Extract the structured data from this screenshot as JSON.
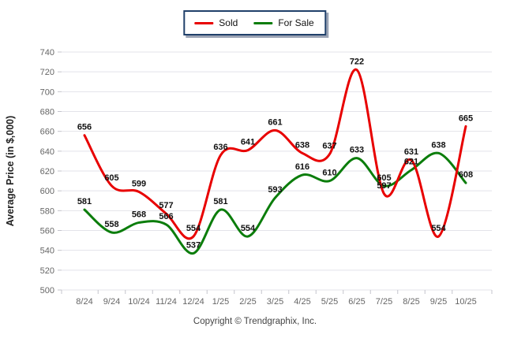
{
  "legend": {
    "items": [
      {
        "label": "Sold",
        "color": "#e80000"
      },
      {
        "label": "For Sale",
        "color": "#0b7d0b"
      }
    ]
  },
  "chart_data": {
    "type": "line",
    "x": [
      "8/24",
      "9/24",
      "10/24",
      "11/24",
      "12/24",
      "1/25",
      "2/25",
      "3/25",
      "4/25",
      "5/25",
      "6/25",
      "7/25",
      "8/25",
      "9/25",
      "10/25"
    ],
    "series": [
      {
        "name": "Sold",
        "color": "#e80000",
        "values": [
          656,
          605,
          599,
          577,
          554,
          636,
          641,
          661,
          638,
          637,
          722,
          597,
          631,
          554,
          665
        ]
      },
      {
        "name": "For Sale",
        "color": "#0b7d0b",
        "values": [
          581,
          558,
          568,
          566,
          537,
          581,
          554,
          593,
          616,
          610,
          633,
          605,
          621,
          638,
          608
        ]
      }
    ],
    "ylabel": "Average Price (in $,000)",
    "ylim": [
      500,
      740
    ],
    "ytick_step": 20,
    "grid": true,
    "smooth": true,
    "data_labels": true,
    "legend_position": "top-center"
  },
  "footer": {
    "copyright": "Copyright © Trendgraphix, Inc."
  }
}
